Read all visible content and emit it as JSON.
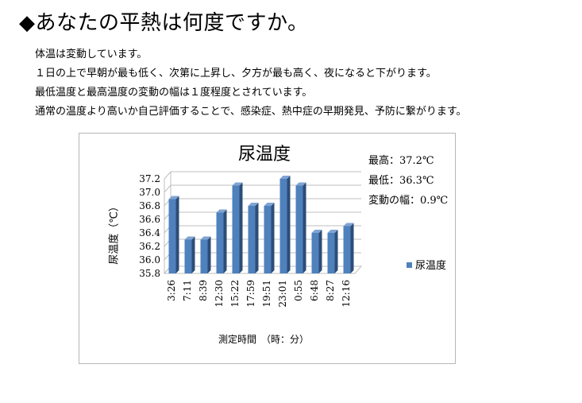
{
  "heading": "◆あなたの平熱は何度ですか。",
  "intro": [
    "体温は変動しています。",
    "１日の上で早朝が最も低く、次第に上昇し、夕方が最も高く、夜になると下がります。",
    "最低温度と最高温度の変動の幅は１度程度とされています。",
    "通常の温度より高いか自己評価することで、感染症、熱中症の早期発見、予防に繋がります。"
  ],
  "stats": [
    "最高：37.2℃",
    "最低：36.3℃",
    "変動の幅：0.9℃"
  ],
  "colors": {
    "bar_front": "#4f81bd",
    "bar_side": "#2c4d76",
    "bar_top": "#7fa4d4"
  },
  "chart_data": {
    "type": "bar",
    "title": "尿温度",
    "xlabel": "測定時間　（時：分）",
    "ylabel": "尿温度（℃）",
    "ylim": [
      35.8,
      37.2
    ],
    "yticks": [
      "35.8",
      "36.0",
      "36.2",
      "36.4",
      "36.6",
      "36.8",
      "37.0",
      "37.2"
    ],
    "categories": [
      "3:26",
      "7:11",
      "8:39",
      "12:30",
      "15:22",
      "17:59",
      "19:51",
      "23:01",
      "0:55",
      "6:48",
      "8:27",
      "12:16"
    ],
    "series": [
      {
        "name": "尿温度",
        "values": [
          36.9,
          36.3,
          36.3,
          36.7,
          37.1,
          36.8,
          36.8,
          37.2,
          37.1,
          36.4,
          36.4,
          36.5
        ]
      }
    ],
    "legend": "right",
    "grid": true
  }
}
